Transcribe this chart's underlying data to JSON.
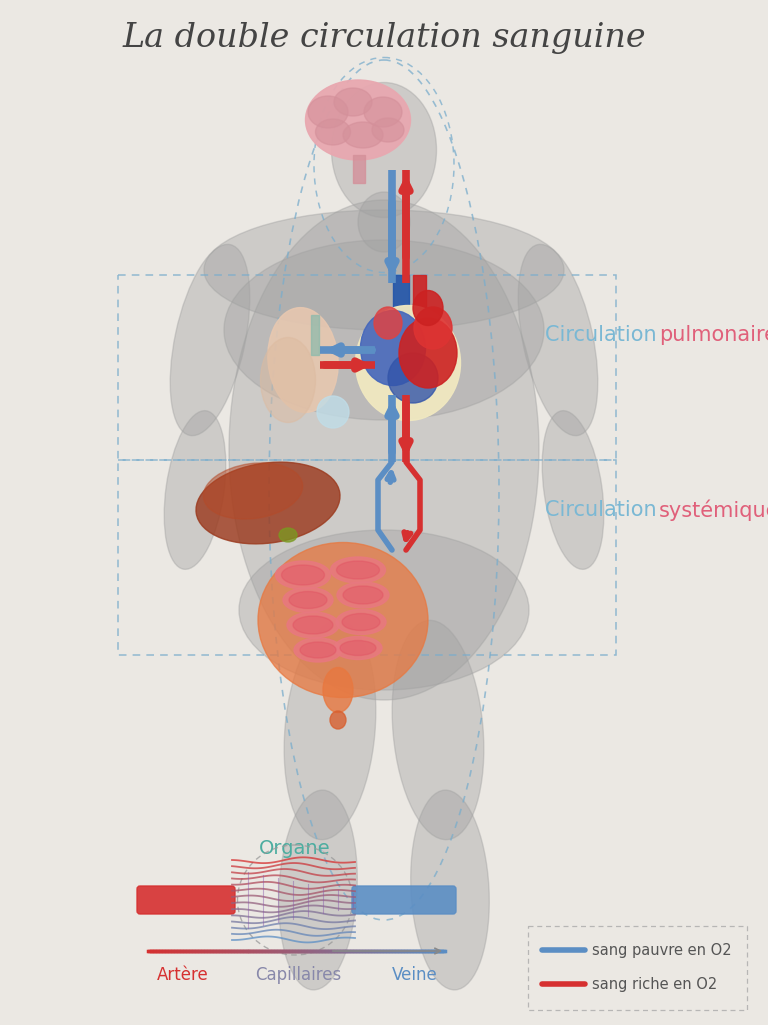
{
  "title": "La double circulation sanguine",
  "bg_color": "#ebe8e3",
  "title_color": "#444444",
  "title_fontsize": 24,
  "blue_blood": "#5b8ec4",
  "red_blood": "#d63030",
  "teal_color": "#4dada0",
  "circ_blue": "#7ab8d4",
  "circ_red": "#e05070",
  "label_pulmonaire_blue": "Circulation ",
  "label_pulmonaire_red": "pulmonaire",
  "label_systemique_red": "Circulation ",
  "label_systemique_blue": "systémique",
  "label_organe": "Organe",
  "label_artere": "Artère",
  "label_capillaires": "Capillaires",
  "label_veine": "Veine",
  "legend_pauvre": "sang pauvre en O2",
  "legend_riche": "sang riche en O2",
  "body_color": "#a0a0a0",
  "body_alpha": 0.4
}
